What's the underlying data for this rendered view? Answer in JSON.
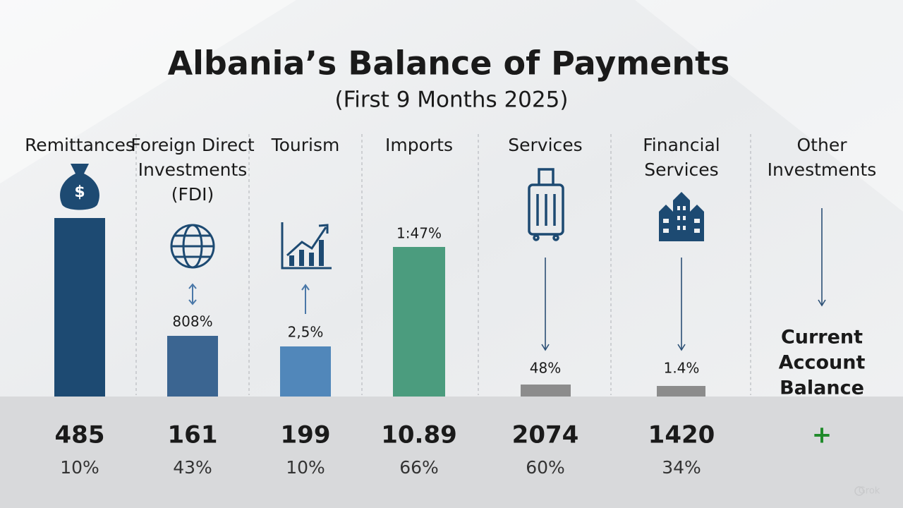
{
  "header": {
    "title": "Albania’s Balance of Payments",
    "subtitle": "(First 9 Months 2025)"
  },
  "columns": [
    {
      "heading": [
        "Remittances"
      ],
      "value": "485",
      "share": "10%"
    },
    {
      "heading": [
        "Foreign Direct",
        "Investments",
        "(FDI)"
      ],
      "bar_label": "808%",
      "value": "161",
      "share": "43%"
    },
    {
      "heading": [
        "Tourism"
      ],
      "bar_label": "2,5%",
      "value": "199",
      "share": "10%"
    },
    {
      "heading": [
        "Imports"
      ],
      "bar_label": "1:47%",
      "value": "10.89",
      "share": "66%"
    },
    {
      "heading": [
        "Services"
      ],
      "bar_label": "48%",
      "value": "2074",
      "share": "60%"
    },
    {
      "heading": [
        "Financial",
        "Services"
      ],
      "bar_label": "1.4%",
      "value": "1420",
      "share": "34%"
    },
    {
      "heading": [
        "Other",
        "Investments"
      ],
      "note": [
        "Current",
        "Account",
        "Balance"
      ],
      "value": "+"
    }
  ],
  "watermark": "Grok"
}
